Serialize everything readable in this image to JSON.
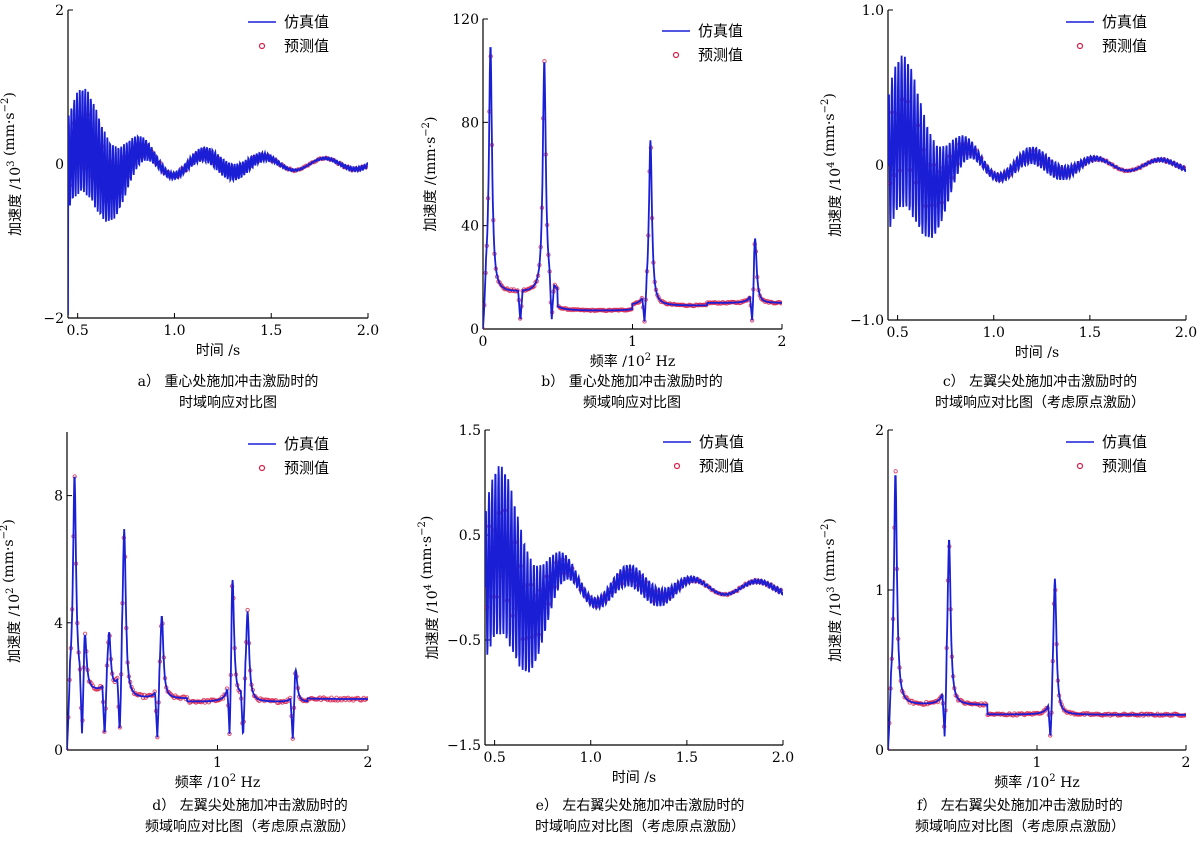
{
  "legend": {
    "sim_label": "仿真值",
    "pred_label": "预测值"
  },
  "colors": {
    "sim": "#1a1fd6",
    "pred": "#d8204a",
    "axis": "#000000"
  },
  "chart_data": [
    {
      "id": "a",
      "type": "line",
      "xlabel": "时间 /s",
      "ylabel_main": "加速度 /10",
      "ylabel_exp": "3",
      "ylabel_unit": " (mm·s",
      "ylabel_unit_exp": "−2",
      "ylabel_close": ")",
      "xlim": [
        0.45,
        2.0
      ],
      "ylim": [
        -2,
        2
      ],
      "xticks": [
        "0.5",
        "1.0",
        "1.5",
        "2.0"
      ],
      "xtick_values": [
        0.5,
        1.0,
        1.5,
        2.0
      ],
      "yticks": [
        "−2",
        "0",
        "2"
      ],
      "ytick_values": [
        -2,
        0,
        2
      ],
      "legend_position": "top-right",
      "caption_line1": "a）  重心处施加冲击激励时的",
      "caption_line2": "时域响应对比图",
      "series": [
        {
          "kind": "time",
          "t0": 0.45,
          "t1": 2.0,
          "amp_early": 1.0,
          "amp_late": 0.15,
          "decay": 2.0,
          "env_freq": 3.2,
          "carrier_freq": 70,
          "pred_amp": 0.55
        }
      ]
    },
    {
      "id": "b",
      "type": "line",
      "xlabel": "频率 /10",
      "xlabel_exp": "2",
      "xlabel_unit": " Hz",
      "ylabel_main": "加速度 /",
      "ylabel_exp": "",
      "ylabel_unit": "(mm·s",
      "ylabel_unit_exp": "−2",
      "ylabel_close": ")",
      "xlim": [
        0.0,
        2.0
      ],
      "ylim": [
        0,
        120
      ],
      "xticks": [
        "0",
        "1",
        "2"
      ],
      "xtick_values": [
        0,
        1,
        2
      ],
      "yticks": [
        "0",
        "40",
        "80",
        "120"
      ],
      "ytick_values": [
        0,
        40,
        80,
        120
      ],
      "legend_position": "top-right",
      "caption_line1": "b）  重心处施加冲击激励时的",
      "caption_line2": "频域响应对比图",
      "peaks": [
        {
          "f": 0.05,
          "h": 110
        },
        {
          "f": 0.41,
          "h": 104
        },
        {
          "f": 1.12,
          "h": 73
        },
        {
          "f": 1.82,
          "h": 35
        }
      ],
      "antiresonances": [
        0.25,
        0.46,
        1.08,
        1.8
      ],
      "baseline": [
        14,
        7,
        9,
        10
      ]
    },
    {
      "id": "c",
      "type": "line",
      "xlabel": "时间 /s",
      "ylabel_main": "加速度 /10",
      "ylabel_exp": "4",
      "ylabel_unit": " (mm·s",
      "ylabel_unit_exp": "−2",
      "ylabel_close": ")",
      "xlim": [
        0.45,
        2.0
      ],
      "ylim": [
        -1.0,
        1.0
      ],
      "xticks": [
        "0.5",
        "1.0",
        "1.5",
        "2.0"
      ],
      "xtick_values": [
        0.5,
        1.0,
        1.5,
        2.0
      ],
      "yticks": [
        "−1.0",
        "0",
        "1.0"
      ],
      "ytick_values": [
        -1.0,
        0,
        1.0
      ],
      "legend_position": "top-right",
      "caption_line1": "c）  左翼尖处施加冲击激励时的",
      "caption_line2": "时域响应对比图（考虑原点激励）",
      "series": [
        {
          "kind": "time",
          "t0": 0.45,
          "t1": 2.0,
          "amp_early": 0.75,
          "amp_late": 0.08,
          "decay": 2.6,
          "env_freq": 3.0,
          "carrier_freq": 60,
          "pred_amp": 0.5
        }
      ]
    },
    {
      "id": "d",
      "type": "line",
      "xlabel": "频率 /10",
      "xlabel_exp": "2",
      "xlabel_unit": " Hz",
      "ylabel_main": "加速度 /10",
      "ylabel_exp": "2",
      "ylabel_unit": " (mm·s",
      "ylabel_unit_exp": "−2",
      "ylabel_close": ")",
      "xlim": [
        0.0,
        2.0
      ],
      "ylim": [
        0,
        10
      ],
      "xticks": [
        "1",
        "2"
      ],
      "xtick_values": [
        1,
        2
      ],
      "yticks": [
        "0",
        "4",
        "8"
      ],
      "ytick_values": [
        0,
        4,
        8
      ],
      "legend_position": "top-right",
      "caption_line1": "d）  左翼尖处施加冲击激励时的",
      "caption_line2": "频域响应对比图（考虑原点激励）",
      "peaks": [
        {
          "f": 0.05,
          "h": 8.6
        },
        {
          "f": 0.12,
          "h": 3.4
        },
        {
          "f": 0.28,
          "h": 3.6
        },
        {
          "f": 0.38,
          "h": 6.9
        },
        {
          "f": 0.63,
          "h": 4.2
        },
        {
          "f": 1.1,
          "h": 5.3
        },
        {
          "f": 1.2,
          "h": 4.3
        },
        {
          "f": 1.52,
          "h": 2.5
        }
      ],
      "antiresonances": [
        0.1,
        0.25,
        0.35,
        0.6,
        1.08,
        1.17,
        1.5
      ],
      "baseline": [
        1.8,
        1.6,
        1.5,
        1.5,
        1.6
      ]
    },
    {
      "id": "e",
      "type": "line",
      "xlabel": "时间 /s",
      "ylabel_main": "加速度 /10",
      "ylabel_exp": "4",
      "ylabel_unit": " (mm·s",
      "ylabel_unit_exp": "−2",
      "ylabel_close": ")",
      "xlim": [
        0.45,
        2.0
      ],
      "ylim": [
        -1.5,
        1.5
      ],
      "xticks": [
        "0.5",
        "1.0",
        "1.5",
        "2.0"
      ],
      "xtick_values": [
        0.5,
        1.0,
        1.5,
        2.0
      ],
      "yticks": [
        "−1.5",
        "−0.5",
        "0.5",
        "1.5"
      ],
      "ytick_values": [
        -1.5,
        -0.5,
        0.5,
        1.5
      ],
      "legend_position": "top-right",
      "caption_line1": "e）  左右翼尖处施加冲击激励时的",
      "caption_line2": "时域响应对比图（考虑原点激励）",
      "series": [
        {
          "kind": "time",
          "t0": 0.45,
          "t1": 2.0,
          "amp_early": 1.2,
          "amp_late": 0.12,
          "decay": 2.2,
          "env_freq": 3.0,
          "carrier_freq": 60,
          "pred_amp": 0.55
        }
      ]
    },
    {
      "id": "f",
      "type": "line",
      "xlabel": "频率 /10",
      "xlabel_exp": "2",
      "xlabel_unit": " Hz",
      "ylabel_main": "加速度 /10",
      "ylabel_exp": "3",
      "ylabel_unit": " (mm·s",
      "ylabel_unit_exp": "−2",
      "ylabel_close": ")",
      "xlim": [
        0.0,
        2.0
      ],
      "ylim": [
        0,
        2
      ],
      "xticks": [
        "1",
        "2"
      ],
      "xtick_values": [
        1,
        2
      ],
      "yticks": [
        "0",
        "1",
        "2"
      ],
      "ytick_values": [
        0,
        1,
        2
      ],
      "legend_position": "top-right",
      "caption_line1": "f）  左右翼尖处施加冲击激励时的",
      "caption_line2": "频域响应对比图（考虑原点激励）",
      "peaks": [
        {
          "f": 0.05,
          "h": 1.73
        },
        {
          "f": 0.41,
          "h": 1.32
        },
        {
          "f": 1.12,
          "h": 1.07
        }
      ],
      "antiresonances": [
        0.38,
        1.09
      ],
      "baseline": [
        0.28,
        0.22,
        0.22
      ]
    }
  ]
}
